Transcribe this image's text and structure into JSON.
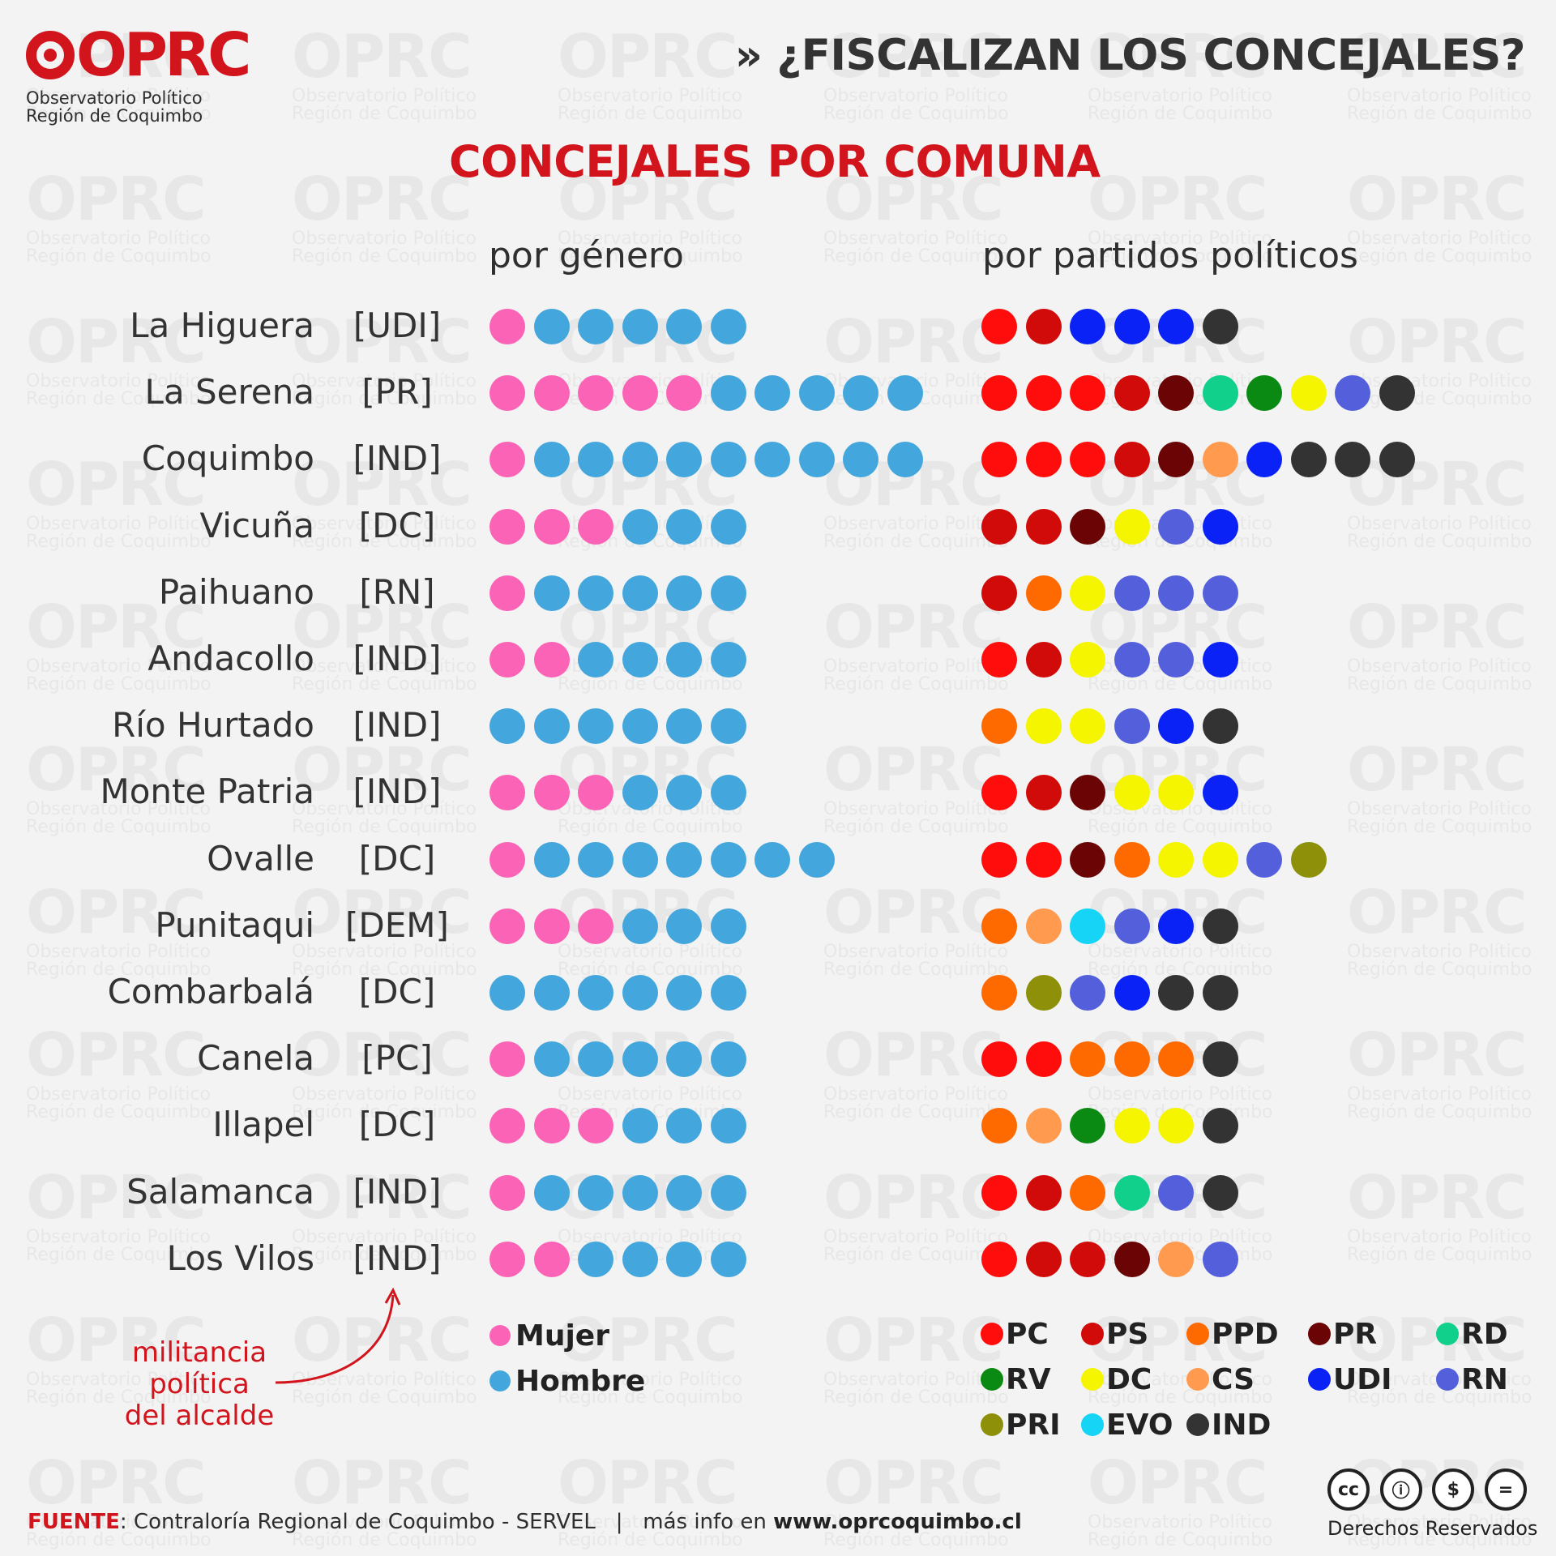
{
  "logo": {
    "text": "OPRC",
    "subtitle_line1": "Observatorio Político",
    "subtitle_line2": "Región de Coquimbo"
  },
  "header": {
    "title": "» ¿FISCALIZAN LOS CONCEJALES?"
  },
  "main_title": "CONCEJALES POR COMUNA",
  "sections": {
    "gender": "por género",
    "parties": "por partidos políticos"
  },
  "colors": {
    "accent_red": "#d2141c",
    "mujer": "#fb64b6",
    "hombre": "#43a6dc",
    "PC": "#ff0d0d",
    "PS": "#d10a0a",
    "PPD": "#ff6a00",
    "PR": "#6b0505",
    "RD": "#10d08c",
    "RV": "#0a8a12",
    "DC": "#f5f500",
    "CS": "#ff9a4e",
    "UDI": "#0a22f5",
    "RN": "#5460db",
    "PRI": "#8d9008",
    "EVO": "#15d4f5",
    "IND": "#333333"
  },
  "chart_data": {
    "type": "dot_matrix",
    "title": "CONCEJALES POR COMUNA",
    "panels": [
      "por género",
      "por partidos políticos"
    ],
    "rows": [
      {
        "comuna": "La Higuera",
        "alcalde": "[UDI]",
        "mujer": 1,
        "hombre": 5,
        "partidos": [
          "PC",
          "PS",
          "UDI",
          "UDI",
          "UDI",
          "IND"
        ]
      },
      {
        "comuna": "La Serena",
        "alcalde": "[PR]",
        "mujer": 5,
        "hombre": 5,
        "partidos": [
          "PC",
          "PC",
          "PC",
          "PS",
          "PR",
          "RD",
          "RV",
          "DC",
          "RN",
          "IND"
        ]
      },
      {
        "comuna": "Coquimbo",
        "alcalde": "[IND]",
        "mujer": 1,
        "hombre": 9,
        "partidos": [
          "PC",
          "PC",
          "PC",
          "PS",
          "PR",
          "CS",
          "UDI",
          "IND",
          "IND",
          "IND"
        ]
      },
      {
        "comuna": "Vicuña",
        "alcalde": "[DC]",
        "mujer": 3,
        "hombre": 3,
        "partidos": [
          "PS",
          "PS",
          "PR",
          "DC",
          "RN",
          "UDI"
        ]
      },
      {
        "comuna": "Paihuano",
        "alcalde": "[RN]",
        "mujer": 1,
        "hombre": 5,
        "partidos": [
          "PS",
          "PPD",
          "DC",
          "RN",
          "RN",
          "RN"
        ]
      },
      {
        "comuna": "Andacollo",
        "alcalde": "[IND]",
        "mujer": 2,
        "hombre": 4,
        "partidos": [
          "PC",
          "PS",
          "DC",
          "RN",
          "RN",
          "UDI"
        ]
      },
      {
        "comuna": "Río Hurtado",
        "alcalde": "[IND]",
        "mujer": 0,
        "hombre": 6,
        "partidos": [
          "PPD",
          "DC",
          "DC",
          "RN",
          "UDI",
          "IND"
        ]
      },
      {
        "comuna": "Monte Patria",
        "alcalde": "[IND]",
        "mujer": 3,
        "hombre": 3,
        "partidos": [
          "PC",
          "PS",
          "PR",
          "DC",
          "DC",
          "UDI"
        ]
      },
      {
        "comuna": "Ovalle",
        "alcalde": "[DC]",
        "mujer": 1,
        "hombre": 7,
        "partidos": [
          "PC",
          "PC",
          "PR",
          "PPD",
          "DC",
          "DC",
          "RN",
          "PRI"
        ]
      },
      {
        "comuna": "Punitaqui",
        "alcalde": "[DEM]",
        "mujer": 3,
        "hombre": 3,
        "partidos": [
          "PPD",
          "CS",
          "EVO",
          "RN",
          "UDI",
          "IND"
        ]
      },
      {
        "comuna": "Combarbalá",
        "alcalde": "[DC]",
        "mujer": 0,
        "hombre": 6,
        "partidos": [
          "PPD",
          "PRI",
          "RN",
          "UDI",
          "IND",
          "IND"
        ]
      },
      {
        "comuna": "Canela",
        "alcalde": "[PC]",
        "mujer": 1,
        "hombre": 5,
        "partidos": [
          "PC",
          "PC",
          "PPD",
          "PPD",
          "PPD",
          "IND"
        ]
      },
      {
        "comuna": "Illapel",
        "alcalde": "[DC]",
        "mujer": 3,
        "hombre": 3,
        "partidos": [
          "PPD",
          "CS",
          "RV",
          "DC",
          "DC",
          "IND"
        ]
      },
      {
        "comuna": "Salamanca",
        "alcalde": "[IND]",
        "mujer": 1,
        "hombre": 5,
        "partidos": [
          "PC",
          "PS",
          "PPD",
          "RD",
          "RN",
          "IND"
        ]
      },
      {
        "comuna": "Los Vilos",
        "alcalde": "[IND]",
        "mujer": 2,
        "hombre": 4,
        "partidos": [
          "PC",
          "PS",
          "PS",
          "PR",
          "CS",
          "RN"
        ]
      }
    ],
    "gender_legend": [
      {
        "key": "mujer",
        "label": "Mujer"
      },
      {
        "key": "hombre",
        "label": "Hombre"
      }
    ],
    "party_legend": [
      "PC",
      "PS",
      "PPD",
      "PR",
      "RD",
      "RV",
      "DC",
      "CS",
      "UDI",
      "RN",
      "PRI",
      "EVO",
      "IND"
    ]
  },
  "annotation": {
    "line1": "militancia",
    "line2": "política",
    "line3": "del alcalde"
  },
  "footer": {
    "source_label": "FUENTE",
    "source_text": ": Contraloría Regional de Coquimbo - SERVEL   |   más info en ",
    "url": "www.oprcoquimbo.cl"
  },
  "license": {
    "icons": [
      "cc-icon",
      "attribution-icon",
      "noncommercial-icon",
      "noderivatives-icon"
    ],
    "icon_glyphs": [
      "cc",
      "ⓘ",
      "$",
      "="
    ],
    "label": "Derechos Reservados"
  }
}
